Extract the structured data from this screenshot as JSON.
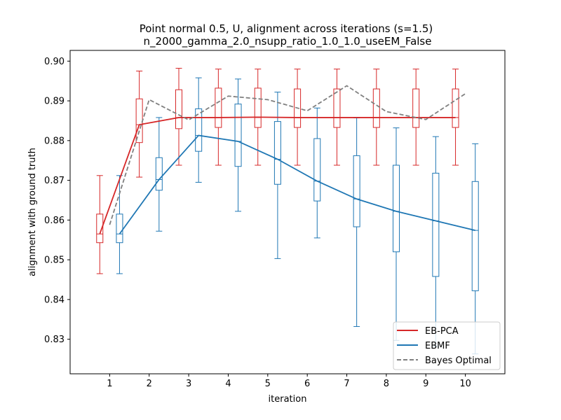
{
  "chart_data": {
    "type": "box+line",
    "title_line1": "Point normal 0.5, U, alignment across iterations (s=1.5)",
    "title_line2": "n_2000_gamma_2.0_nsupp_ratio_1.0_1.0_useEM_False",
    "xlabel": "iteration",
    "ylabel": "alignment with ground truth",
    "xlim": [
      0,
      11
    ],
    "ylim": [
      0.8213,
      0.9027
    ],
    "xticks": [
      1,
      2,
      3,
      4,
      5,
      6,
      7,
      8,
      9,
      10
    ],
    "yticks": [
      0.83,
      0.84,
      0.85,
      0.86,
      0.87,
      0.88,
      0.89,
      0.9
    ],
    "ytick_labels": [
      "0.83",
      "0.84",
      "0.85",
      "0.86",
      "0.87",
      "0.88",
      "0.89",
      "0.90"
    ],
    "legend_position": "lower-right",
    "series": [
      {
        "name": "EB-PCA",
        "color": "#d62728",
        "style": "solid",
        "x": [
          0.75,
          1.75,
          2.75,
          3.75,
          4.75,
          5.75,
          6.75,
          7.75,
          8.75,
          9.75
        ],
        "values": [
          0.8565,
          0.884,
          0.8858,
          0.8858,
          0.8859,
          0.8858,
          0.8858,
          0.8858,
          0.8858,
          0.8858
        ],
        "boxes": [
          {
            "whislo": 0.8465,
            "q1": 0.8543,
            "med": 0.8565,
            "q3": 0.8615,
            "whishi": 0.8712
          },
          {
            "whislo": 0.8708,
            "q1": 0.8795,
            "med": 0.884,
            "q3": 0.8905,
            "whishi": 0.8975
          },
          {
            "whislo": 0.8738,
            "q1": 0.883,
            "med": 0.8858,
            "q3": 0.8928,
            "whishi": 0.8982
          },
          {
            "whislo": 0.8738,
            "q1": 0.8833,
            "med": 0.8858,
            "q3": 0.8932,
            "whishi": 0.898
          },
          {
            "whislo": 0.8738,
            "q1": 0.8833,
            "med": 0.8858,
            "q3": 0.8932,
            "whishi": 0.898
          },
          {
            "whislo": 0.8738,
            "q1": 0.8833,
            "med": 0.8858,
            "q3": 0.893,
            "whishi": 0.898
          },
          {
            "whislo": 0.8738,
            "q1": 0.8833,
            "med": 0.8858,
            "q3": 0.893,
            "whishi": 0.898
          },
          {
            "whislo": 0.8738,
            "q1": 0.8833,
            "med": 0.8858,
            "q3": 0.893,
            "whishi": 0.898
          },
          {
            "whislo": 0.8738,
            "q1": 0.8833,
            "med": 0.8858,
            "q3": 0.893,
            "whishi": 0.898
          },
          {
            "whislo": 0.8738,
            "q1": 0.8833,
            "med": 0.8858,
            "q3": 0.893,
            "whishi": 0.898
          }
        ]
      },
      {
        "name": "EBMF",
        "color": "#1f77b4",
        "style": "solid",
        "x": [
          1.25,
          2.25,
          3.25,
          4.25,
          5.25,
          6.25,
          7.25,
          8.25,
          9.25,
          10.25
        ],
        "values": [
          0.8565,
          0.8702,
          0.8813,
          0.8798,
          0.8753,
          0.8698,
          0.8653,
          0.8622,
          0.8598,
          0.8574
        ],
        "boxes": [
          {
            "whislo": 0.8465,
            "q1": 0.8543,
            "med": 0.8565,
            "q3": 0.8615,
            "whishi": 0.8712
          },
          {
            "whislo": 0.8572,
            "q1": 0.8675,
            "med": 0.8702,
            "q3": 0.8757,
            "whishi": 0.8858
          },
          {
            "whislo": 0.8695,
            "q1": 0.8773,
            "med": 0.8813,
            "q3": 0.888,
            "whishi": 0.8958
          },
          {
            "whislo": 0.8622,
            "q1": 0.8735,
            "med": 0.8798,
            "q3": 0.8892,
            "whishi": 0.8955
          },
          {
            "whislo": 0.8503,
            "q1": 0.869,
            "med": 0.8753,
            "q3": 0.8848,
            "whishi": 0.8922
          },
          {
            "whislo": 0.8555,
            "q1": 0.8648,
            "med": 0.8698,
            "q3": 0.8805,
            "whishi": 0.8882
          },
          {
            "whislo": 0.8332,
            "q1": 0.8583,
            "med": 0.8653,
            "q3": 0.8762,
            "whishi": 0.8857
          },
          {
            "whislo": 0.8297,
            "q1": 0.852,
            "med": 0.8622,
            "q3": 0.8738,
            "whishi": 0.8832
          },
          {
            "whislo": 0.8282,
            "q1": 0.8458,
            "med": 0.8598,
            "q3": 0.8718,
            "whishi": 0.881
          },
          {
            "whislo": 0.8263,
            "q1": 0.8422,
            "med": 0.8574,
            "q3": 0.8697,
            "whishi": 0.8792
          }
        ]
      },
      {
        "name": "Bayes Optimal",
        "color": "#808080",
        "style": "dashed",
        "x": [
          1.0,
          2.0,
          3.0,
          4.0,
          5.0,
          6.0,
          7.0,
          8.0,
          9.0,
          10.0
        ],
        "values": [
          0.8588,
          0.8903,
          0.8852,
          0.8912,
          0.8903,
          0.8875,
          0.8938,
          0.8873,
          0.8853,
          0.8918
        ]
      }
    ]
  }
}
